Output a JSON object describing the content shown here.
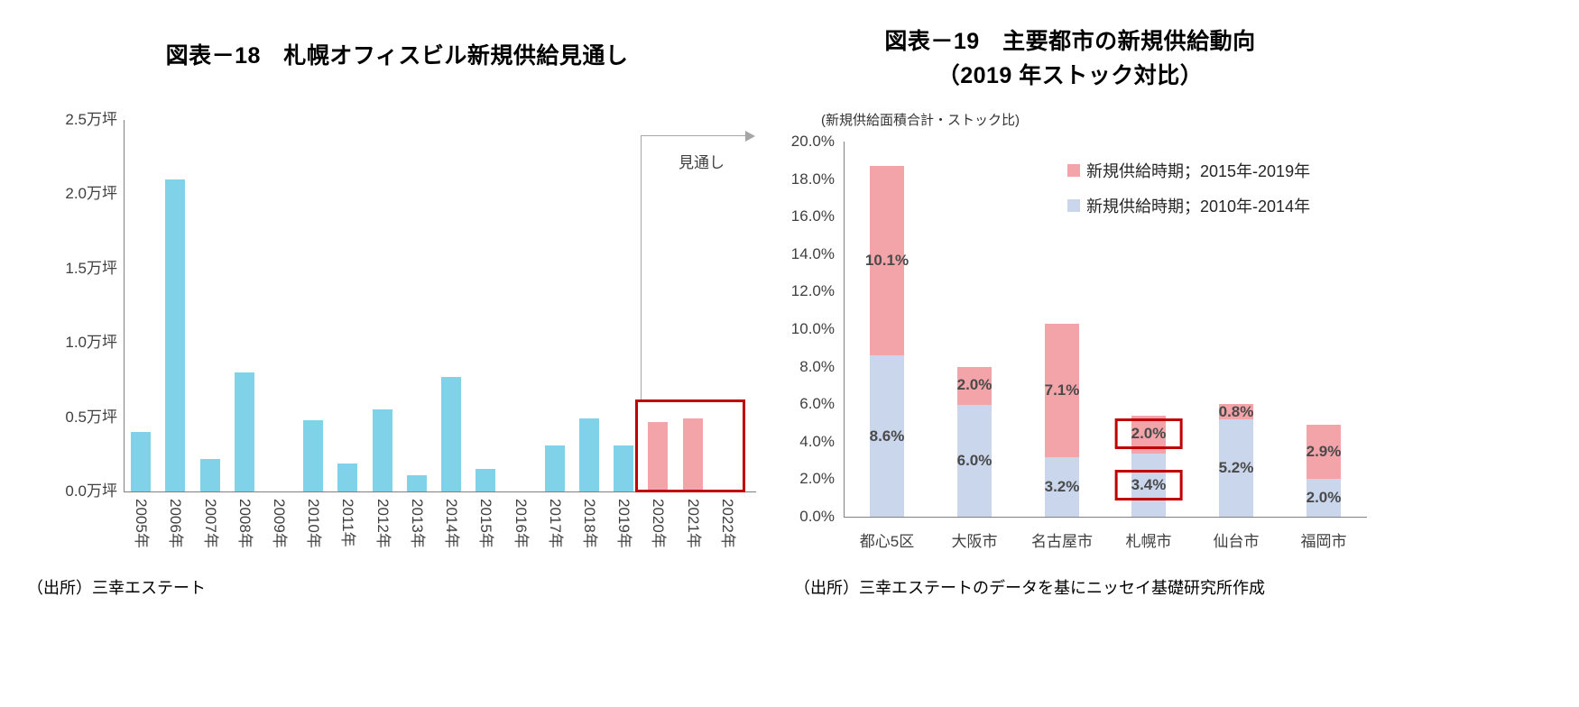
{
  "chart_data": [
    {
      "id": "fig18",
      "type": "bar",
      "title": "図表－18　札幌オフィスビル新規供給見通し",
      "unit": "万坪",
      "categories": [
        "2005年",
        "2006年",
        "2007年",
        "2008年",
        "2009年",
        "2010年",
        "2011年",
        "2012年",
        "2013年",
        "2014年",
        "2015年",
        "2016年",
        "2017年",
        "2018年",
        "2019年",
        "2020年",
        "2021年",
        "2022年"
      ],
      "values": [
        0.4,
        2.1,
        0.22,
        0.8,
        0,
        0.48,
        0.19,
        0.55,
        0.11,
        0.77,
        0.15,
        0,
        0.31,
        0.49,
        0.31,
        0.47,
        0.49,
        0
      ],
      "forecast_start_index": 15,
      "forecast_label": "見通し",
      "ylim": [
        0,
        2.5
      ],
      "ytick_step": 0.5,
      "ytick_labels": [
        "0.0万坪",
        "0.5万坪",
        "1.0万坪",
        "1.5万坪",
        "2.0万坪",
        "2.5万坪"
      ],
      "grid": false,
      "colors": {
        "actual": "#7fd2e8",
        "forecast": "#f2a4a9",
        "highlight_box": "#c00000",
        "annotation_line": "#a6a6a6"
      },
      "source": "（出所）三幸エステート"
    },
    {
      "id": "fig19",
      "type": "stacked-bar",
      "title_line1": "図表－19　主要都市の新規供給動向",
      "title_line2": "（2019 年ストック対比）",
      "axis_note": "(新規供給面積合計・ストック比)",
      "categories": [
        "都心5区",
        "大阪市",
        "名古屋市",
        "札幌市",
        "仙台市",
        "福岡市"
      ],
      "series": [
        {
          "name": "新規供給時期；2010年-2014年",
          "color": "#c9d6ec",
          "values": [
            8.6,
            6.0,
            3.2,
            3.4,
            5.2,
            2.0
          ],
          "labels": [
            "8.6%",
            "6.0%",
            "3.2%",
            "3.4%",
            "5.2%",
            "2.0%"
          ]
        },
        {
          "name": "新規供給時期；2015年-2019年",
          "color": "#f2a4a9",
          "values": [
            10.1,
            2.0,
            7.1,
            2.0,
            0.8,
            2.9
          ],
          "labels": [
            "10.1%",
            "2.0%",
            "7.1%",
            "2.0%",
            "0.8%",
            "2.9%"
          ]
        }
      ],
      "legend": [
        {
          "label": "新規供給時期；2015年-2019年",
          "color": "#f2a4a9",
          "icon": "legend-swatch-2015-2019"
        },
        {
          "label": "新規供給時期；2010年-2014年",
          "color": "#c9d6ec",
          "icon": "legend-swatch-2010-2014"
        }
      ],
      "legend_position": "top-right",
      "highlight_category": "札幌市",
      "ylim": [
        0,
        20
      ],
      "ytick_step": 2,
      "ytick_labels": [
        "0.0%",
        "2.0%",
        "4.0%",
        "6.0%",
        "8.0%",
        "10.0%",
        "12.0%",
        "14.0%",
        "16.0%",
        "18.0%",
        "20.0%"
      ],
      "grid": false,
      "colors": {
        "highlight_box": "#c00000"
      },
      "source": "（出所）三幸エステートのデータを基にニッセイ基礎研究所作成"
    }
  ]
}
